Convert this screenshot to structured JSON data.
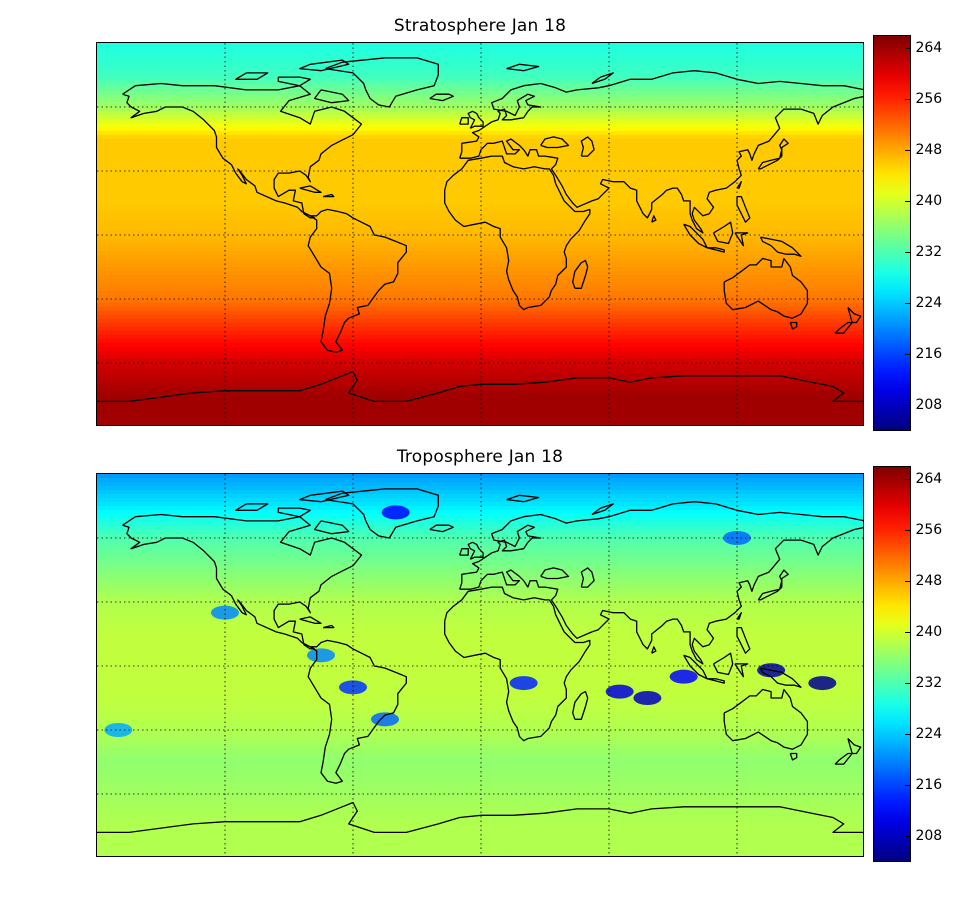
{
  "panels": [
    {
      "title": "Stratosphere Jan 18"
    },
    {
      "title": "Troposphere Jan 18"
    }
  ],
  "chart_data": [
    {
      "type": "heatmap",
      "title": "Stratosphere Jan 18",
      "xlabel": "",
      "ylabel": "",
      "xlim": [
        -180,
        180
      ],
      "ylim": [
        -90,
        90
      ],
      "grid": true,
      "grid_style": "dotted",
      "colormap": "jet",
      "colorbar": {
        "vmin": 204,
        "vmax": 266,
        "ticks": [
          264,
          256,
          248,
          240,
          232,
          224,
          216,
          208
        ]
      },
      "z_profile_by_latitude": {
        "lat": [
          90,
          75,
          60,
          45,
          30,
          15,
          0,
          -15,
          -30,
          -45,
          -60,
          -75,
          -90
        ],
        "value": [
          229,
          231,
          237,
          246,
          246,
          246,
          247,
          249,
          251,
          256,
          261,
          264,
          264
        ]
      },
      "overlay": "coastlines"
    },
    {
      "type": "heatmap",
      "title": "Troposphere Jan 18",
      "xlabel": "",
      "ylabel": "",
      "xlim": [
        -180,
        180
      ],
      "ylim": [
        -90,
        90
      ],
      "grid": true,
      "grid_style": "dotted",
      "colormap": "jet",
      "colorbar": {
        "vmin": 204,
        "vmax": 266,
        "ticks": [
          264,
          256,
          248,
          240,
          232,
          224,
          216,
          208
        ]
      },
      "z_profile_by_latitude": {
        "lat": [
          90,
          75,
          60,
          45,
          30,
          15,
          0,
          -15,
          -30,
          -45,
          -60,
          -75,
          -90
        ],
        "value": [
          221,
          226,
          232,
          235,
          238,
          239,
          239,
          239,
          238,
          236,
          237,
          238,
          238
        ]
      },
      "cold_spots": [
        {
          "lon": 136,
          "lat": -2,
          "value": 206
        },
        {
          "lon": 160,
          "lat": -8,
          "value": 205
        },
        {
          "lon": 65,
          "lat": -12,
          "value": 210
        },
        {
          "lon": 78,
          "lat": -15,
          "value": 208
        },
        {
          "lon": 95,
          "lat": -5,
          "value": 212
        },
        {
          "lon": 20,
          "lat": -8,
          "value": 214
        },
        {
          "lon": -60,
          "lat": -10,
          "value": 215
        },
        {
          "lon": -45,
          "lat": -25,
          "value": 218
        },
        {
          "lon": -75,
          "lat": 5,
          "value": 220
        },
        {
          "lon": -120,
          "lat": 25,
          "value": 220
        },
        {
          "lon": -170,
          "lat": -30,
          "value": 222
        },
        {
          "lon": 120,
          "lat": 60,
          "value": 218
        },
        {
          "lon": -40,
          "lat": 72,
          "value": 212
        }
      ],
      "overlay": "coastlines"
    }
  ]
}
